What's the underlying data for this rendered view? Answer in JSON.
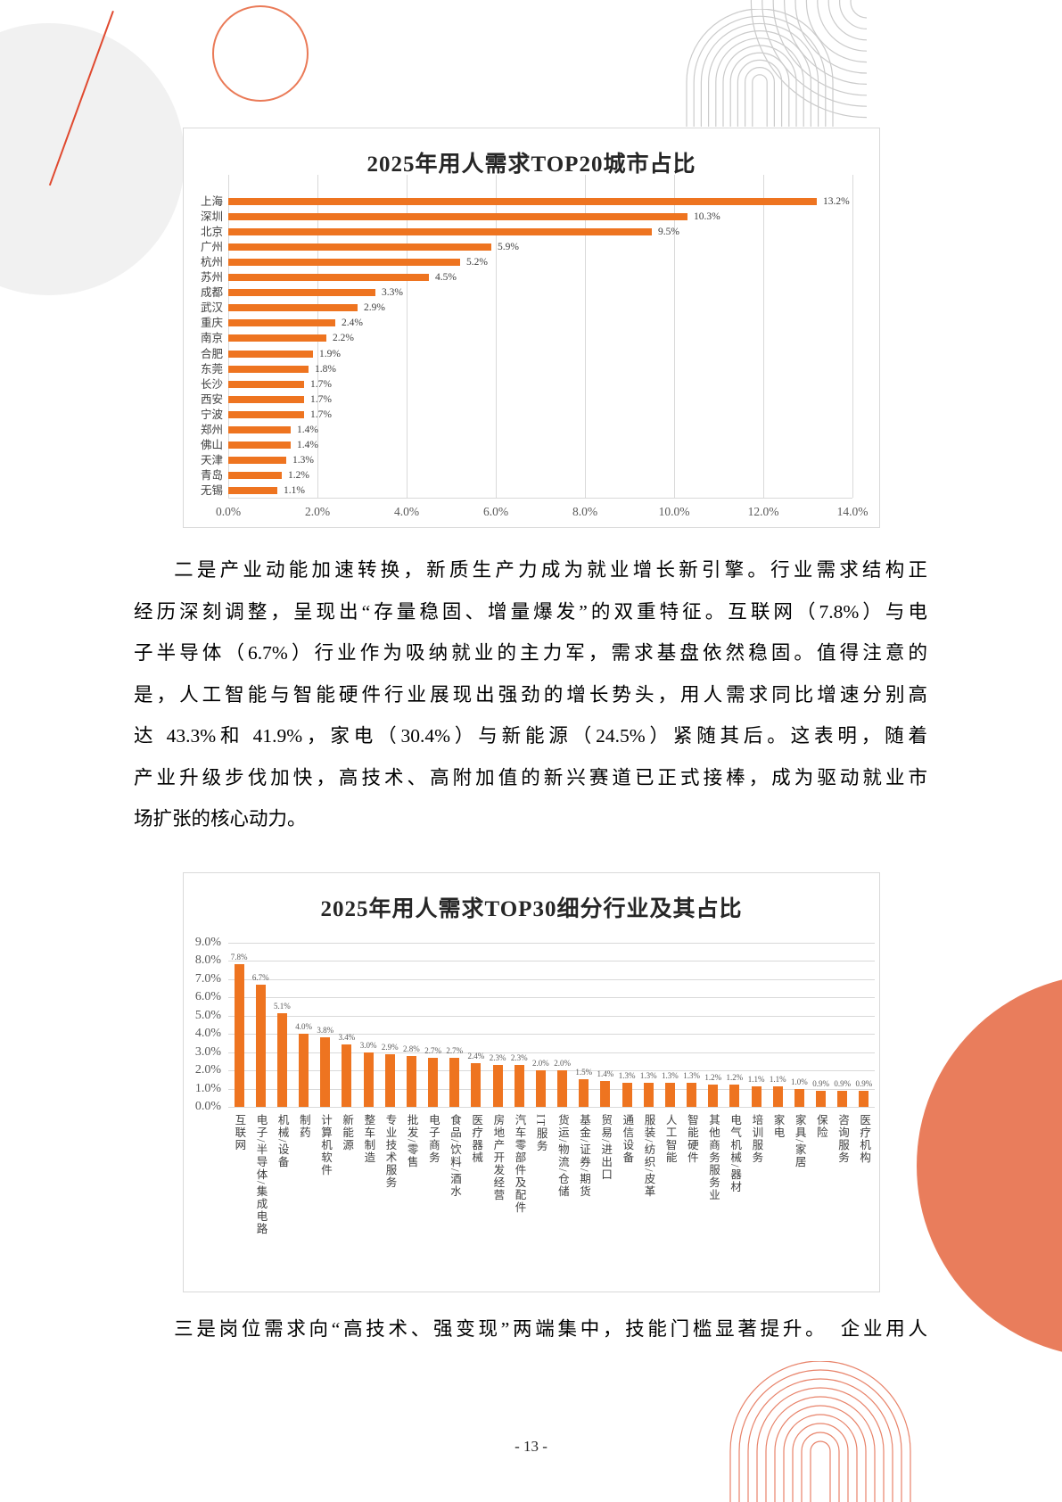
{
  "document": {
    "page_number": "- 13 -",
    "paragraph_industry_lines": [
      "二是产业动能加速转换，新质生产力成为就业增长新引擎。行业需求结构正",
      "经历深刻调整，呈现出“存量稳固、增量爆发”的双重特征。互联网（7.8%）与电",
      "子半导体（6.7%）行业作为吸纳就业的主力军，需求基盘依然稳固。值得注意的",
      "是，人工智能与智能硬件行业展现出强劲的增长势头，用人需求同比增速分别高",
      "达 43.3%和 41.9%，家电（30.4%）与新能源（24.5%）紧随其后。这表明，随着",
      "产业升级步伐加快，高技术、高附加值的新兴赛道已正式接棒，成为驱动就业市",
      "场扩张的核心动力。"
    ],
    "paragraph_positions": "三是岗位需求向“高技术、强变现”两端集中，技能门槛显著提升。　企业用人"
  },
  "chart_data": [
    {
      "type": "bar",
      "orientation": "horizontal",
      "title": "2025年用人需求TOP20城市占比",
      "categories": [
        "上海",
        "深圳",
        "北京",
        "广州",
        "杭州",
        "苏州",
        "成都",
        "武汉",
        "重庆",
        "南京",
        "合肥",
        "东莞",
        "长沙",
        "西安",
        "宁波",
        "郑州",
        "佛山",
        "天津",
        "青岛",
        "无锡"
      ],
      "values": [
        13.2,
        10.3,
        9.5,
        5.9,
        5.2,
        4.5,
        3.3,
        2.9,
        2.4,
        2.2,
        1.9,
        1.8,
        1.7,
        1.7,
        1.7,
        1.4,
        1.4,
        1.3,
        1.2,
        1.1
      ],
      "value_labels": [
        "13.2%",
        "10.3%",
        "9.5%",
        "5.9%",
        "5.2%",
        "4.5%",
        "3.3%",
        "2.9%",
        "2.4%",
        "2.2%",
        "1.9%",
        "1.8%",
        "1.7%",
        "1.7%",
        "1.7%",
        "1.4%",
        "1.4%",
        "1.3%",
        "1.2%",
        "1.1%"
      ],
      "x_ticks": [
        "0.0%",
        "2.0%",
        "4.0%",
        "6.0%",
        "8.0%",
        "10.0%",
        "12.0%",
        "14.0%"
      ],
      "xlim": [
        0,
        14
      ],
      "bar_color": "#ee7420",
      "grid": "vertical"
    },
    {
      "type": "bar",
      "orientation": "vertical",
      "title": "2025年用人需求TOP30细分行业及其占比",
      "categories": [
        "互联网",
        "电子/半导体/集成电路",
        "机械/设备",
        "制药",
        "计算机软件",
        "新能源",
        "整车制造",
        "专业技术服务",
        "批发/零售",
        "电子商务",
        "食品/饮料/酒水",
        "医疗器械",
        "房地产开发经营",
        "汽车零部件及配件",
        "IT服务",
        "货运/物流/仓储",
        "基金/证券/期货",
        "贸易/进出口",
        "通信设备",
        "服装/纺织/皮革",
        "人工智能",
        "智能硬件",
        "其他商务服务业",
        "电气机械/器材",
        "培训服务",
        "家电",
        "家具/家居",
        "保险",
        "咨询服务",
        "医疗机构"
      ],
      "values": [
        7.8,
        6.7,
        5.1,
        4.0,
        3.8,
        3.4,
        3.0,
        2.9,
        2.8,
        2.7,
        2.7,
        2.4,
        2.3,
        2.3,
        2.0,
        2.0,
        1.5,
        1.4,
        1.3,
        1.3,
        1.3,
        1.3,
        1.2,
        1.2,
        1.1,
        1.1,
        1.0,
        0.9,
        0.9,
        0.9
      ],
      "value_labels": [
        "7.8%",
        "6.7%",
        "5.1%",
        "4.0%",
        "3.8%",
        "3.4%",
        "3.0%",
        "2.9%",
        "2.8%",
        "2.7%",
        "2.7%",
        "2.4%",
        "2.3%",
        "2.3%",
        "2.0%",
        "2.0%",
        "1.5%",
        "1.4%",
        "1.3%",
        "1.3%",
        "1.3%",
        "1.3%",
        "1.2%",
        "1.2%",
        "1.1%",
        "1.1%",
        "1.0%",
        "0.9%",
        "0.9%",
        "0.9%"
      ],
      "y_ticks": [
        "9.0%",
        "8.0%",
        "7.0%",
        "6.0%",
        "5.0%",
        "4.0%",
        "3.0%",
        "2.0%",
        "1.0%",
        "0.0%"
      ],
      "ylim": [
        0,
        9
      ],
      "bar_color": "#ee7420",
      "grid": "horizontal"
    }
  ]
}
